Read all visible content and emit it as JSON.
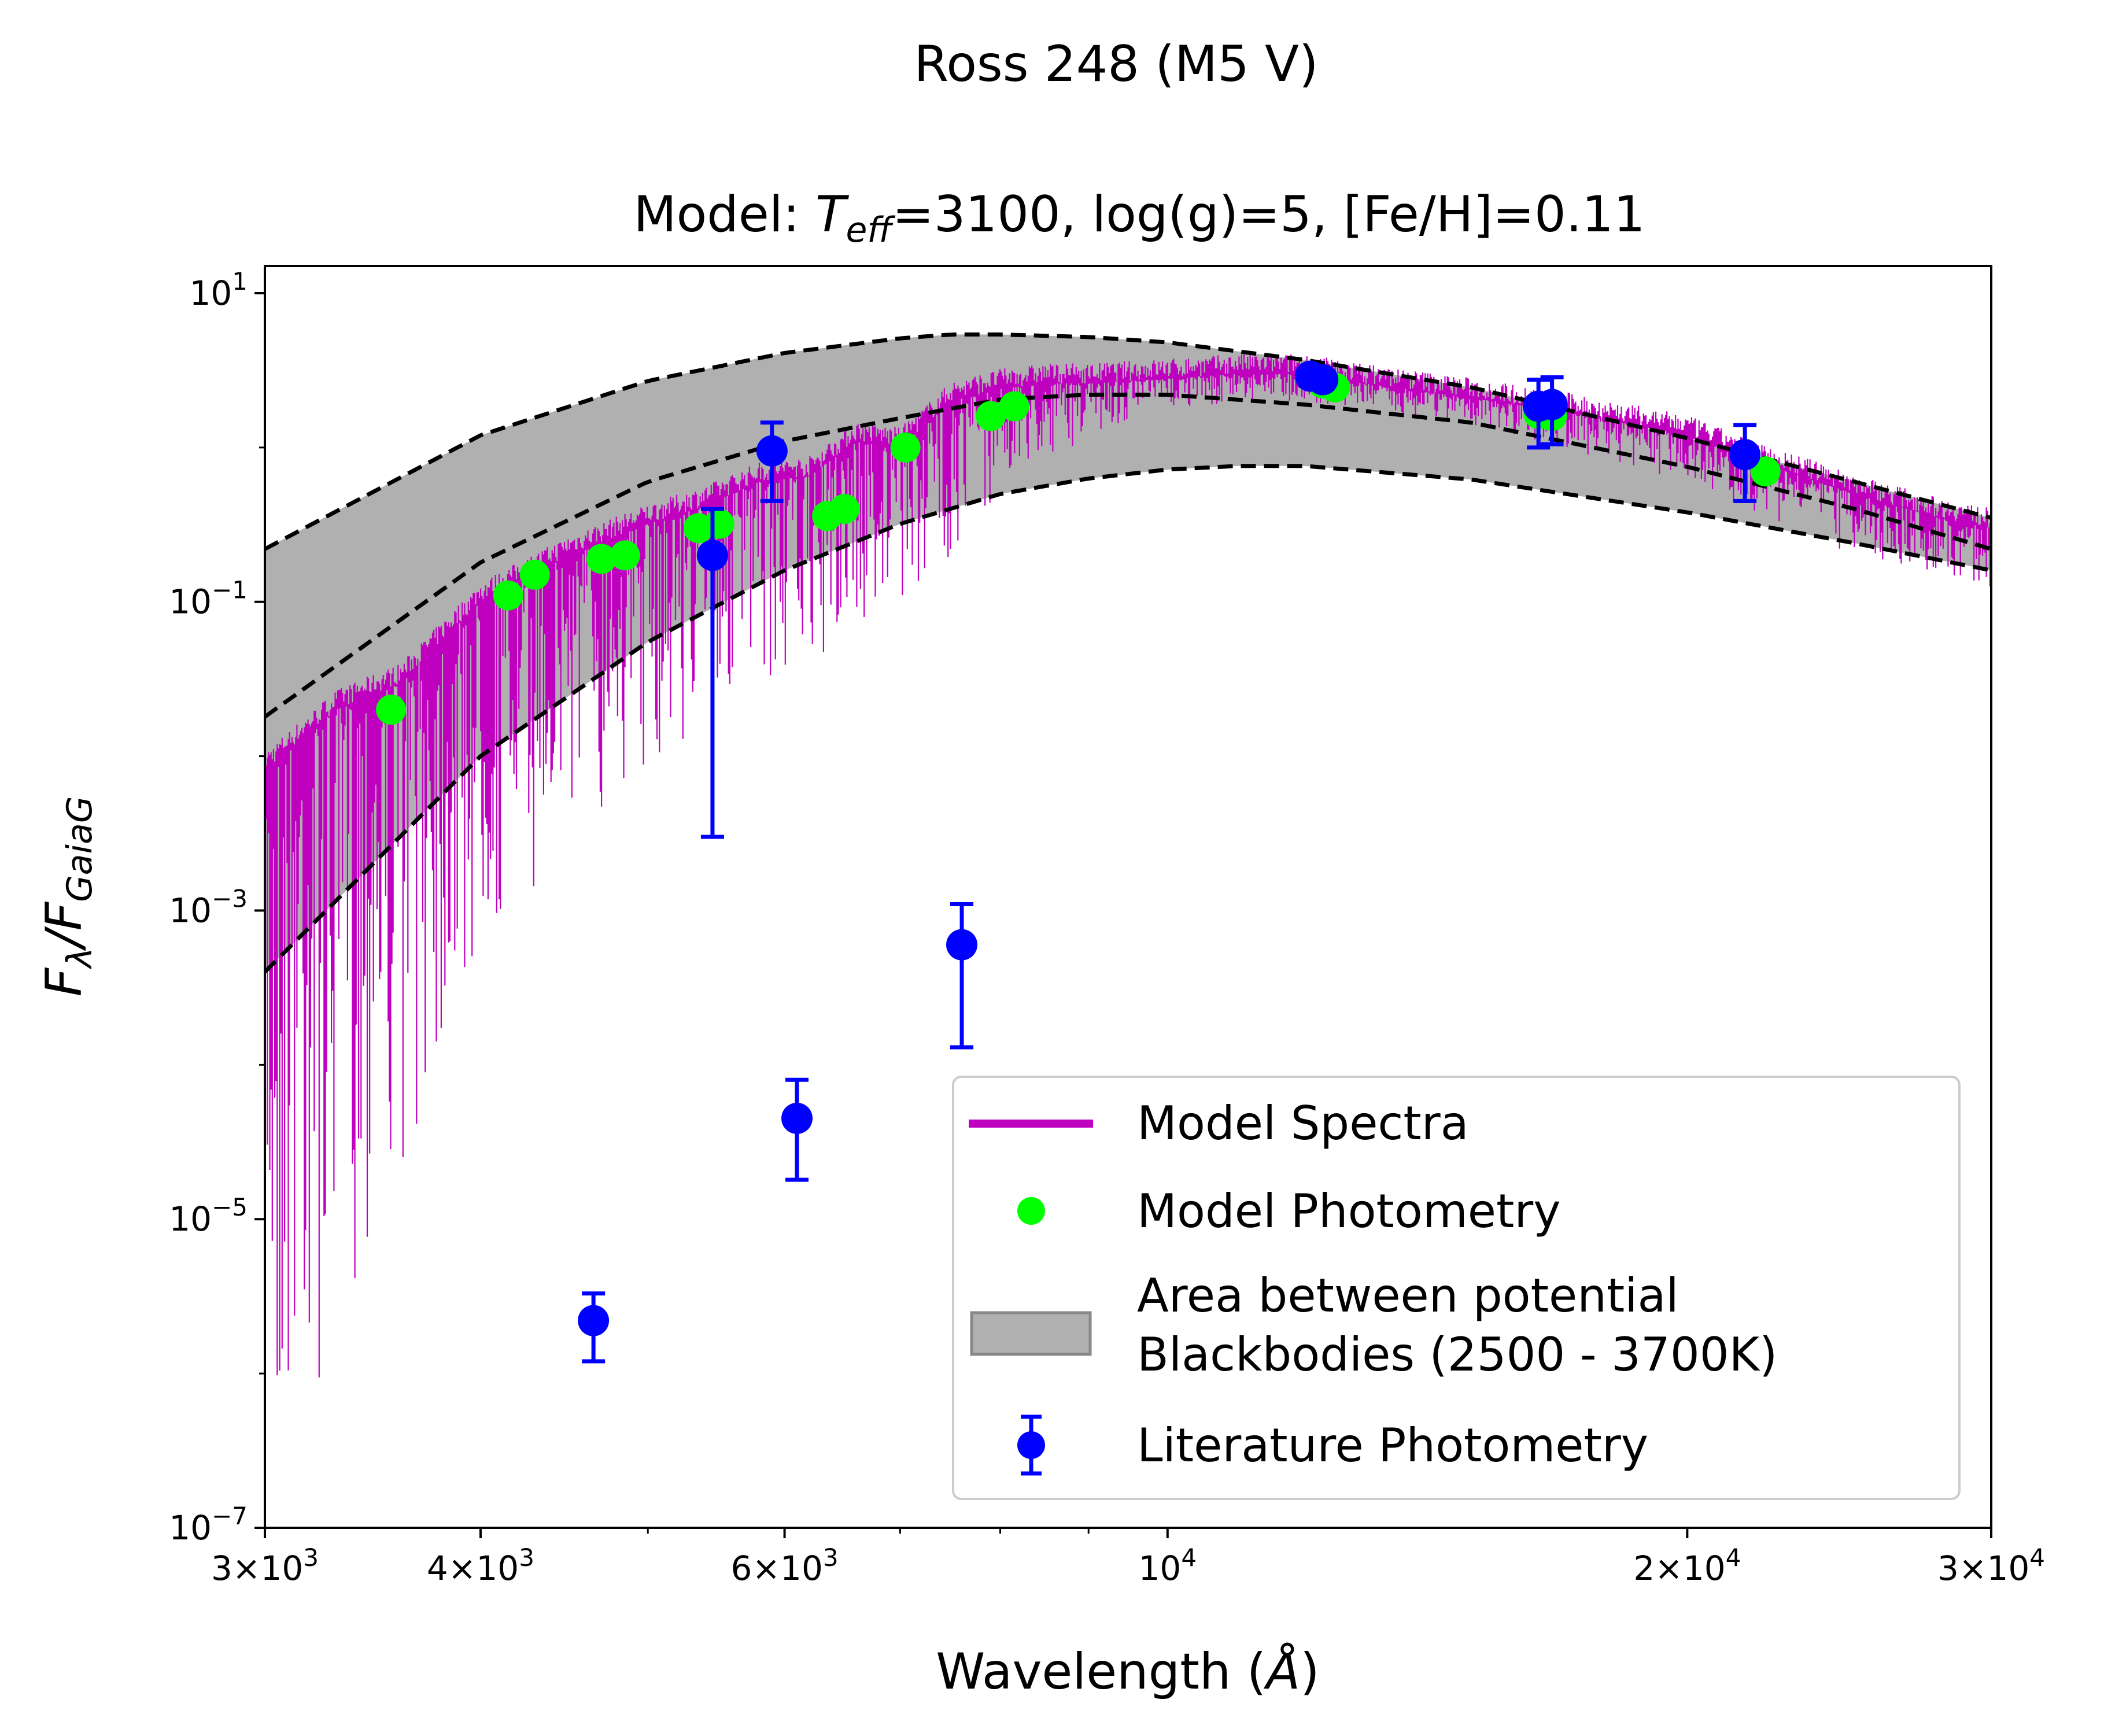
{
  "figure": {
    "suptitle": "Ross 248 (M5 V)",
    "title_prefix": "Model: ",
    "title_T": "T",
    "title_sub": "eff",
    "title_suffix": "=3100, log(g)=5, [Fe/H]=0.11"
  },
  "chart_data": {
    "type": "line",
    "xlabel_prefix": "Wavelength (",
    "xlabel_unit": "Å",
    "xlabel_suffix": ")",
    "ylabel_main": "F",
    "ylabel_sub1": "λ",
    "ylabel_mid": "/F",
    "ylabel_sub2": "GaiaG",
    "x_scale": "log",
    "y_scale": "log",
    "xlim": [
      3000,
      30000
    ],
    "ylim": [
      1e-07,
      15
    ],
    "grid": false,
    "legend_position": "lower-right",
    "x_ticks": [
      {
        "value": 3000,
        "mantissa": "3×10",
        "exp": "3"
      },
      {
        "value": 4000,
        "mantissa": "4×10",
        "exp": "3"
      },
      {
        "value": 6000,
        "mantissa": "6×10",
        "exp": "3"
      },
      {
        "value": 10000,
        "mantissa": "10",
        "exp": "4"
      },
      {
        "value": 20000,
        "mantissa": "2×10",
        "exp": "4"
      },
      {
        "value": 30000,
        "mantissa": "3×10",
        "exp": "4"
      }
    ],
    "x_minor_ticks": [
      5000,
      7000,
      8000,
      9000
    ],
    "y_ticks": [
      {
        "value": 10,
        "base": "10",
        "exp": "1"
      },
      {
        "value": 0.1,
        "base": "10",
        "exp": "−1"
      },
      {
        "value": 0.001,
        "base": "10",
        "exp": "−3"
      },
      {
        "value": 1e-05,
        "base": "10",
        "exp": "−5"
      },
      {
        "value": 1e-07,
        "base": "10",
        "exp": "−7"
      }
    ],
    "colors": {
      "model_spectra": "#bf00bf",
      "model_photometry": "#00ff00",
      "literature_photometry": "#0000ff",
      "blackbody_fill": "#b0b0b0",
      "blackbody_lines": "#000000"
    },
    "blackbody_curves": {
      "temperatures_K": [
        2500,
        3100,
        3700
      ],
      "line_style": "dashed",
      "normalized_values": [
        {
          "temperature": 3700,
          "x": [
            3000,
            4000,
            5000,
            6000,
            7000,
            7500,
            8000,
            9000,
            10000,
            12000,
            15000,
            20000,
            25000,
            30000
          ],
          "y": [
            0.22,
            1.2,
            2.7,
            4.1,
            5.1,
            5.4,
            5.4,
            5.2,
            4.8,
            3.7,
            2.45,
            1.15,
            0.6,
            0.35
          ]
        },
        {
          "temperature": 3100,
          "x": [
            3000,
            4000,
            5000,
            6000,
            7000,
            8000,
            9000,
            10000,
            12000,
            15000,
            20000,
            25000,
            30000
          ],
          "y": [
            0.018,
            0.18,
            0.6,
            1.1,
            1.55,
            2.05,
            2.2,
            2.2,
            1.9,
            1.45,
            0.75,
            0.4,
            0.22
          ]
        },
        {
          "temperature": 2500,
          "x": [
            3000,
            4000,
            5000,
            6000,
            7000,
            8000,
            9000,
            10000,
            11000,
            12000,
            15000,
            20000,
            25000,
            30000
          ],
          "y": [
            0.0004,
            0.01,
            0.055,
            0.16,
            0.32,
            0.5,
            0.63,
            0.72,
            0.76,
            0.76,
            0.62,
            0.38,
            0.24,
            0.16
          ]
        }
      ]
    },
    "model_spectra": {
      "continuum_x": [
        3000,
        3300,
        3600,
        4000,
        4500,
        5000,
        5400,
        5800,
        6200,
        6600,
        7000,
        7500,
        8000,
        8500,
        9000,
        10000,
        11000,
        12000,
        13000,
        15000,
        17000,
        20000,
        22000,
        25000,
        28000,
        30000
      ],
      "continuum_y": [
        0.008,
        0.02,
        0.03,
        0.1,
        0.2,
        0.32,
        0.42,
        0.6,
        0.65,
        1.1,
        1.0,
        2.0,
        2.4,
        2.6,
        2.6,
        2.8,
        3.0,
        3.0,
        2.6,
        2.1,
        1.7,
        1.2,
        0.8,
        0.5,
        0.35,
        0.3
      ],
      "absorption_floor_x": [
        3000,
        3500,
        4000,
        4500,
        5000,
        5500,
        6000,
        6500,
        7000,
        7500,
        8000,
        9000,
        10000,
        12000,
        15000,
        20000,
        25000,
        30000
      ],
      "absorption_floor_y": [
        1e-07,
        1e-05,
        0.0004,
        0.003,
        0.008,
        0.02,
        0.03,
        0.05,
        0.08,
        0.2,
        0.5,
        1.2,
        1.8,
        2.0,
        1.4,
        0.6,
        0.2,
        0.12
      ]
    },
    "model_photometry": {
      "x": [
        3550,
        4150,
        4300,
        4700,
        4850,
        5350,
        5500,
        6350,
        6500,
        7050,
        7900,
        8150,
        12300,
        12500,
        16400,
        16700,
        22200
      ],
      "y": [
        0.02,
        0.11,
        0.15,
        0.19,
        0.2,
        0.3,
        0.32,
        0.36,
        0.4,
        1.0,
        1.6,
        1.85,
        2.6,
        2.45,
        1.65,
        1.6,
        0.7
      ]
    },
    "literature_photometry": {
      "x": [
        4650,
        5450,
        5900,
        6100,
        7600,
        12100,
        12300,
        16400,
        16700,
        21600
      ],
      "y": [
        2.2e-06,
        0.2,
        0.95,
        4.5e-05,
        0.0006,
        2.9,
        2.75,
        1.85,
        1.9,
        0.9
      ],
      "yerr_low": [
        1.2e-06,
        0.003,
        0.45,
        1.8e-05,
        0.00013,
        2.5,
        2.4,
        1.0,
        1.05,
        0.45
      ],
      "yerr_high": [
        3.3e-06,
        0.4,
        1.45,
        8e-05,
        0.0011,
        3.3,
        3.1,
        2.75,
        2.85,
        1.4
      ]
    },
    "legend": [
      {
        "type": "line",
        "label": "Model Spectra"
      },
      {
        "type": "dot",
        "label": "Model Photometry"
      },
      {
        "type": "patch",
        "label_line1": "Area between potential",
        "label_line2": "Blackbodies (2500 - 3700K)"
      },
      {
        "type": "errorbar",
        "label": "Literature Photometry"
      }
    ]
  }
}
